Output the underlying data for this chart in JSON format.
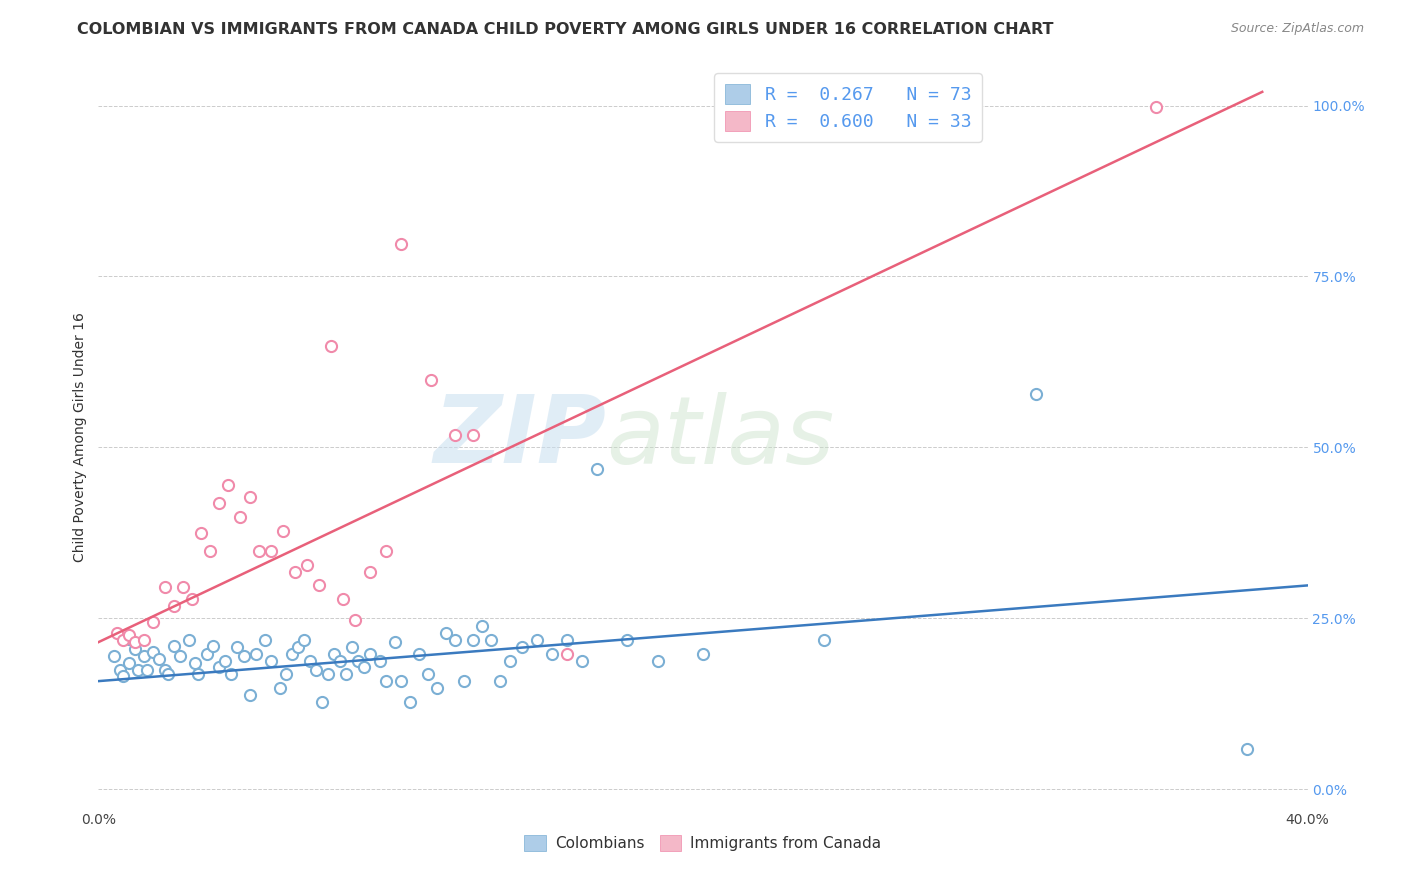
{
  "title": "COLOMBIAN VS IMMIGRANTS FROM CANADA CHILD POVERTY AMONG GIRLS UNDER 16 CORRELATION CHART",
  "source": "Source: ZipAtlas.com",
  "ylabel": "Child Poverty Among Girls Under 16",
  "xlim": [
    0.0,
    0.4
  ],
  "ylim": [
    -0.02,
    1.05
  ],
  "xticks": [
    0.0,
    0.1,
    0.2,
    0.3,
    0.4
  ],
  "xticklabels": [
    "0.0%",
    "",
    "",
    "",
    "40.0%"
  ],
  "yticks_right": [
    0.0,
    0.25,
    0.5,
    0.75,
    1.0
  ],
  "yticklabels_right": [
    "0.0%",
    "25.0%",
    "50.0%",
    "75.0%",
    "100.0%"
  ],
  "blue_color": "#aecde8",
  "pink_color": "#f4b8c8",
  "blue_edge_color": "#7bafd4",
  "pink_edge_color": "#f08aaa",
  "blue_line_color": "#3a7abf",
  "pink_line_color": "#e8607a",
  "R_blue": "0.267",
  "N_blue": "73",
  "R_pink": "0.600",
  "N_pink": "33",
  "legend_label_blue": "Colombians",
  "legend_label_pink": "Immigrants from Canada",
  "watermark_zip": "ZIP",
  "watermark_atlas": "atlas",
  "blue_scatter": [
    [
      0.005,
      0.195
    ],
    [
      0.007,
      0.175
    ],
    [
      0.008,
      0.165
    ],
    [
      0.01,
      0.22
    ],
    [
      0.01,
      0.185
    ],
    [
      0.012,
      0.205
    ],
    [
      0.013,
      0.175
    ],
    [
      0.015,
      0.195
    ],
    [
      0.016,
      0.175
    ],
    [
      0.018,
      0.2
    ],
    [
      0.02,
      0.19
    ],
    [
      0.022,
      0.175
    ],
    [
      0.023,
      0.168
    ],
    [
      0.025,
      0.21
    ],
    [
      0.027,
      0.195
    ],
    [
      0.03,
      0.218
    ],
    [
      0.032,
      0.185
    ],
    [
      0.033,
      0.168
    ],
    [
      0.036,
      0.198
    ],
    [
      0.038,
      0.21
    ],
    [
      0.04,
      0.178
    ],
    [
      0.042,
      0.188
    ],
    [
      0.044,
      0.168
    ],
    [
      0.046,
      0.208
    ],
    [
      0.048,
      0.195
    ],
    [
      0.05,
      0.138
    ],
    [
      0.052,
      0.198
    ],
    [
      0.055,
      0.218
    ],
    [
      0.057,
      0.188
    ],
    [
      0.06,
      0.148
    ],
    [
      0.062,
      0.168
    ],
    [
      0.064,
      0.198
    ],
    [
      0.066,
      0.208
    ],
    [
      0.068,
      0.218
    ],
    [
      0.07,
      0.188
    ],
    [
      0.072,
      0.175
    ],
    [
      0.074,
      0.128
    ],
    [
      0.076,
      0.168
    ],
    [
      0.078,
      0.198
    ],
    [
      0.08,
      0.188
    ],
    [
      0.082,
      0.168
    ],
    [
      0.084,
      0.208
    ],
    [
      0.086,
      0.188
    ],
    [
      0.088,
      0.178
    ],
    [
      0.09,
      0.198
    ],
    [
      0.093,
      0.188
    ],
    [
      0.095,
      0.158
    ],
    [
      0.098,
      0.215
    ],
    [
      0.1,
      0.158
    ],
    [
      0.103,
      0.128
    ],
    [
      0.106,
      0.198
    ],
    [
      0.109,
      0.168
    ],
    [
      0.112,
      0.148
    ],
    [
      0.115,
      0.228
    ],
    [
      0.118,
      0.218
    ],
    [
      0.121,
      0.158
    ],
    [
      0.124,
      0.218
    ],
    [
      0.127,
      0.238
    ],
    [
      0.13,
      0.218
    ],
    [
      0.133,
      0.158
    ],
    [
      0.136,
      0.188
    ],
    [
      0.14,
      0.208
    ],
    [
      0.145,
      0.218
    ],
    [
      0.15,
      0.198
    ],
    [
      0.155,
      0.218
    ],
    [
      0.16,
      0.188
    ],
    [
      0.165,
      0.468
    ],
    [
      0.175,
      0.218
    ],
    [
      0.185,
      0.188
    ],
    [
      0.2,
      0.198
    ],
    [
      0.24,
      0.218
    ],
    [
      0.31,
      0.578
    ],
    [
      0.38,
      0.058
    ]
  ],
  "pink_scatter": [
    [
      0.006,
      0.228
    ],
    [
      0.008,
      0.218
    ],
    [
      0.01,
      0.225
    ],
    [
      0.012,
      0.215
    ],
    [
      0.015,
      0.218
    ],
    [
      0.018,
      0.245
    ],
    [
      0.022,
      0.295
    ],
    [
      0.025,
      0.268
    ],
    [
      0.028,
      0.295
    ],
    [
      0.031,
      0.278
    ],
    [
      0.034,
      0.375
    ],
    [
      0.037,
      0.348
    ],
    [
      0.04,
      0.418
    ],
    [
      0.043,
      0.445
    ],
    [
      0.047,
      0.398
    ],
    [
      0.05,
      0.428
    ],
    [
      0.053,
      0.348
    ],
    [
      0.057,
      0.348
    ],
    [
      0.061,
      0.378
    ],
    [
      0.065,
      0.318
    ],
    [
      0.069,
      0.328
    ],
    [
      0.073,
      0.298
    ],
    [
      0.077,
      0.648
    ],
    [
      0.081,
      0.278
    ],
    [
      0.085,
      0.248
    ],
    [
      0.09,
      0.318
    ],
    [
      0.095,
      0.348
    ],
    [
      0.1,
      0.798
    ],
    [
      0.11,
      0.598
    ],
    [
      0.118,
      0.518
    ],
    [
      0.124,
      0.518
    ],
    [
      0.155,
      0.198
    ],
    [
      0.35,
      0.998
    ]
  ],
  "blue_line": [
    [
      0.0,
      0.158
    ],
    [
      0.4,
      0.298
    ]
  ],
  "pink_line": [
    [
      0.0,
      0.215
    ],
    [
      0.385,
      1.02
    ]
  ],
  "background_color": "#ffffff",
  "grid_color": "#cccccc",
  "title_color": "#333333",
  "tick_color_right": "#5599ee",
  "title_fontsize": 11.5,
  "axis_label_fontsize": 10,
  "tick_fontsize": 10
}
